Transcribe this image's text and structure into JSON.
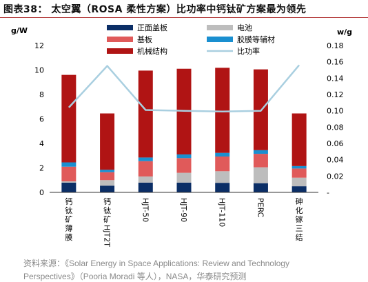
{
  "figure": {
    "title": "图表38：  太空翼（ROSA 柔性方案）比功率中钙钛矿方案最为领先",
    "source": "资料来源：《Solar Energy in Space Applications: Review and Technology",
    "source_cont": "Perspectives》（Pooria Moradi 等人），NASA，华泰研究预测"
  },
  "chart_data": {
    "type": "bar",
    "stacked": true,
    "categories": [
      "钙钛矿薄膜",
      "钙钛矿HJT2T",
      "HJT-50",
      "HJT-90",
      "HJT-110",
      "PERC",
      "砷化镓三结"
    ],
    "series": [
      {
        "name": "正面盖板",
        "color": "#0b2e66",
        "axis": "left",
        "values": [
          0.8,
          0.55,
          0.8,
          0.8,
          0.78,
          0.75,
          0.5
        ]
      },
      {
        "name": "电池",
        "color": "#bdbdbd",
        "axis": "left",
        "values": [
          0.1,
          0.45,
          0.5,
          0.8,
          0.95,
          1.3,
          0.7
        ]
      },
      {
        "name": "基板",
        "color": "#e05a5a",
        "axis": "left",
        "values": [
          1.2,
          0.65,
          1.25,
          1.2,
          1.2,
          1.1,
          0.75
        ]
      },
      {
        "name": "胶膜等辅材",
        "color": "#1a8fd0",
        "axis": "left",
        "values": [
          0.35,
          0.2,
          0.3,
          0.3,
          0.3,
          0.3,
          0.2
        ]
      },
      {
        "name": "机械结构",
        "color": "#b01414",
        "axis": "left",
        "values": [
          7.15,
          4.6,
          7.1,
          7.0,
          6.95,
          6.6,
          4.3
        ]
      },
      {
        "name": "比功率",
        "type": "line",
        "color": "#a9cfe0",
        "axis": "right",
        "values": [
          0.104,
          0.155,
          0.101,
          0.1,
          0.099,
          0.1,
          0.156
        ]
      }
    ],
    "ylabel": "g/W",
    "ylabel_right": "w/g",
    "ylim": [
      0,
      12
    ],
    "yticks": [
      "0",
      "2",
      "4",
      "6",
      "8",
      "10",
      "12"
    ],
    "ylim_right": [
      0,
      0.18
    ],
    "yticks_right": [
      "-",
      "0.02",
      "0.04",
      "0.06",
      "0.08",
      "0.10",
      "0.12",
      "0.14",
      "0.16",
      "0.18"
    ],
    "legend": "top-center",
    "grid": false
  }
}
